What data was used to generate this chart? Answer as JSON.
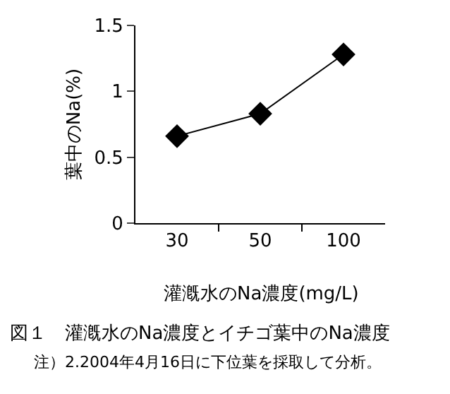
{
  "chart_data": {
    "type": "line",
    "title": "図１　灌漑水のNa濃度とイチゴ葉中のNa濃度",
    "xlabel": "灌漑水のNa濃度(mg/L)",
    "ylabel": "葉中のNa(%)",
    "categories": [
      "30",
      "50",
      "100"
    ],
    "series": [
      {
        "color": "#000000",
        "values": [
          0.66,
          0.83,
          1.28
        ]
      }
    ],
    "ylim": [
      0,
      1.5
    ],
    "yticks": [
      0,
      0.5,
      1,
      1.5
    ],
    "marker": "diamond",
    "line_style": "solid",
    "annotations": [
      "注）2.2004年4月16日に下位葉を採取して分析。"
    ]
  }
}
